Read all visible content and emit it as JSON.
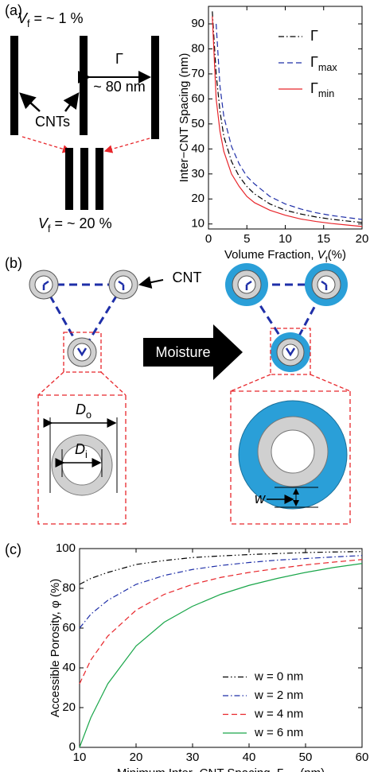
{
  "diagram": {
    "panel_a": "(a)",
    "panel_b": "(b)",
    "panel_c": "(c)",
    "vf_low": {
      "symbol": "V",
      "sub": "f",
      "text": " = ~ 1 %"
    },
    "vf_high": {
      "symbol": "V",
      "sub": "f",
      "text": " = ~ 20 %"
    },
    "gamma": "Γ",
    "spacing": "~ 80 nm",
    "cnts": "CNTs",
    "cnt": "CNT",
    "moisture": "Moisture",
    "d_outer": {
      "symbol": "D",
      "sub": "o"
    },
    "d_inner": {
      "symbol": "D",
      "sub": "i"
    },
    "w": "w"
  },
  "chart_data": [
    {
      "type": "line",
      "ylabel": "Inter−CNT Spacing (nm)",
      "xlabel": "Volume Fraction, ",
      "xlabel_symbol": "V",
      "xlabel_sub": "f",
      "xlabel_suffix": "(%)",
      "x": [
        0.5,
        1,
        1.5,
        2,
        3,
        4,
        5,
        6,
        8,
        10,
        12,
        14,
        16,
        18,
        20
      ],
      "series": [
        {
          "name": "Γ",
          "color": "#000000",
          "linestyle": "dashdot",
          "values": [
            95,
            70,
            55,
            45,
            35,
            29,
            25,
            22,
            18,
            15.5,
            14,
            12.8,
            11.9,
            11.2,
            10.6
          ]
        },
        {
          "name": "Γ",
          "sub": "max",
          "color": "#1f2fa8",
          "linestyle": "dashed",
          "values": [
            null,
            90,
            65,
            53,
            41,
            34,
            29,
            26,
            21,
            18,
            16,
            14.5,
            13.4,
            12.6,
            11.8
          ]
        },
        {
          "name": "Γ",
          "sub": "min",
          "color": "#e8262b",
          "linestyle": "solid",
          "values": [
            93,
            60,
            47,
            39,
            30,
            25,
            21,
            18.5,
            15.5,
            13.5,
            12,
            11,
            10.2,
            9.6,
            9.0
          ]
        }
      ],
      "xlim": [
        0,
        20
      ],
      "xticks": [
        0,
        5,
        10,
        15,
        20
      ],
      "ylim": [
        8,
        97
      ],
      "yticks": [
        10,
        20,
        30,
        40,
        50,
        60,
        70,
        80,
        90
      ],
      "grid": false,
      "legend": "upper right"
    },
    {
      "type": "line",
      "ylabel": "Accessible Porosity, φ (%)",
      "xlabel": "Minimum Inter−CNT Spacing, ",
      "xlabel_symbol": "Γ",
      "xlabel_sub": "min",
      "xlabel_suffix": " (nm)",
      "x": [
        10,
        12,
        15,
        20,
        25,
        30,
        35,
        40,
        45,
        50,
        55,
        60
      ],
      "series": [
        {
          "name": "w = 0 nm",
          "color": "#000000",
          "linestyle": "dashdotdot",
          "values": [
            82,
            85,
            88,
            92,
            94,
            95.5,
            96.3,
            97,
            97.5,
            98,
            98.3,
            98.5
          ]
        },
        {
          "name": "w = 2 nm",
          "color": "#1f2fa8",
          "linestyle": "dashdot",
          "values": [
            60,
            67,
            74,
            82,
            86.5,
            89.5,
            91.5,
            93,
            94.2,
            95,
            95.8,
            96.5
          ]
        },
        {
          "name": "w = 4 nm",
          "color": "#e8262b",
          "linestyle": "dashed",
          "values": [
            32,
            44,
            56,
            69,
            77,
            82,
            85.5,
            88,
            90,
            91.8,
            93.2,
            94.5
          ]
        },
        {
          "name": "w = 6 nm",
          "color": "#1aa64a",
          "linestyle": "solid",
          "values": [
            0,
            15,
            32,
            51,
            63,
            71,
            77,
            81.5,
            85,
            88,
            90.5,
            92.5
          ]
        }
      ],
      "xlim": [
        10,
        60
      ],
      "xticks": [
        10,
        20,
        30,
        40,
        50,
        60
      ],
      "ylim": [
        0,
        100
      ],
      "yticks": [
        0,
        20,
        40,
        60,
        80,
        100
      ],
      "grid": false,
      "legend": "lower right"
    }
  ]
}
